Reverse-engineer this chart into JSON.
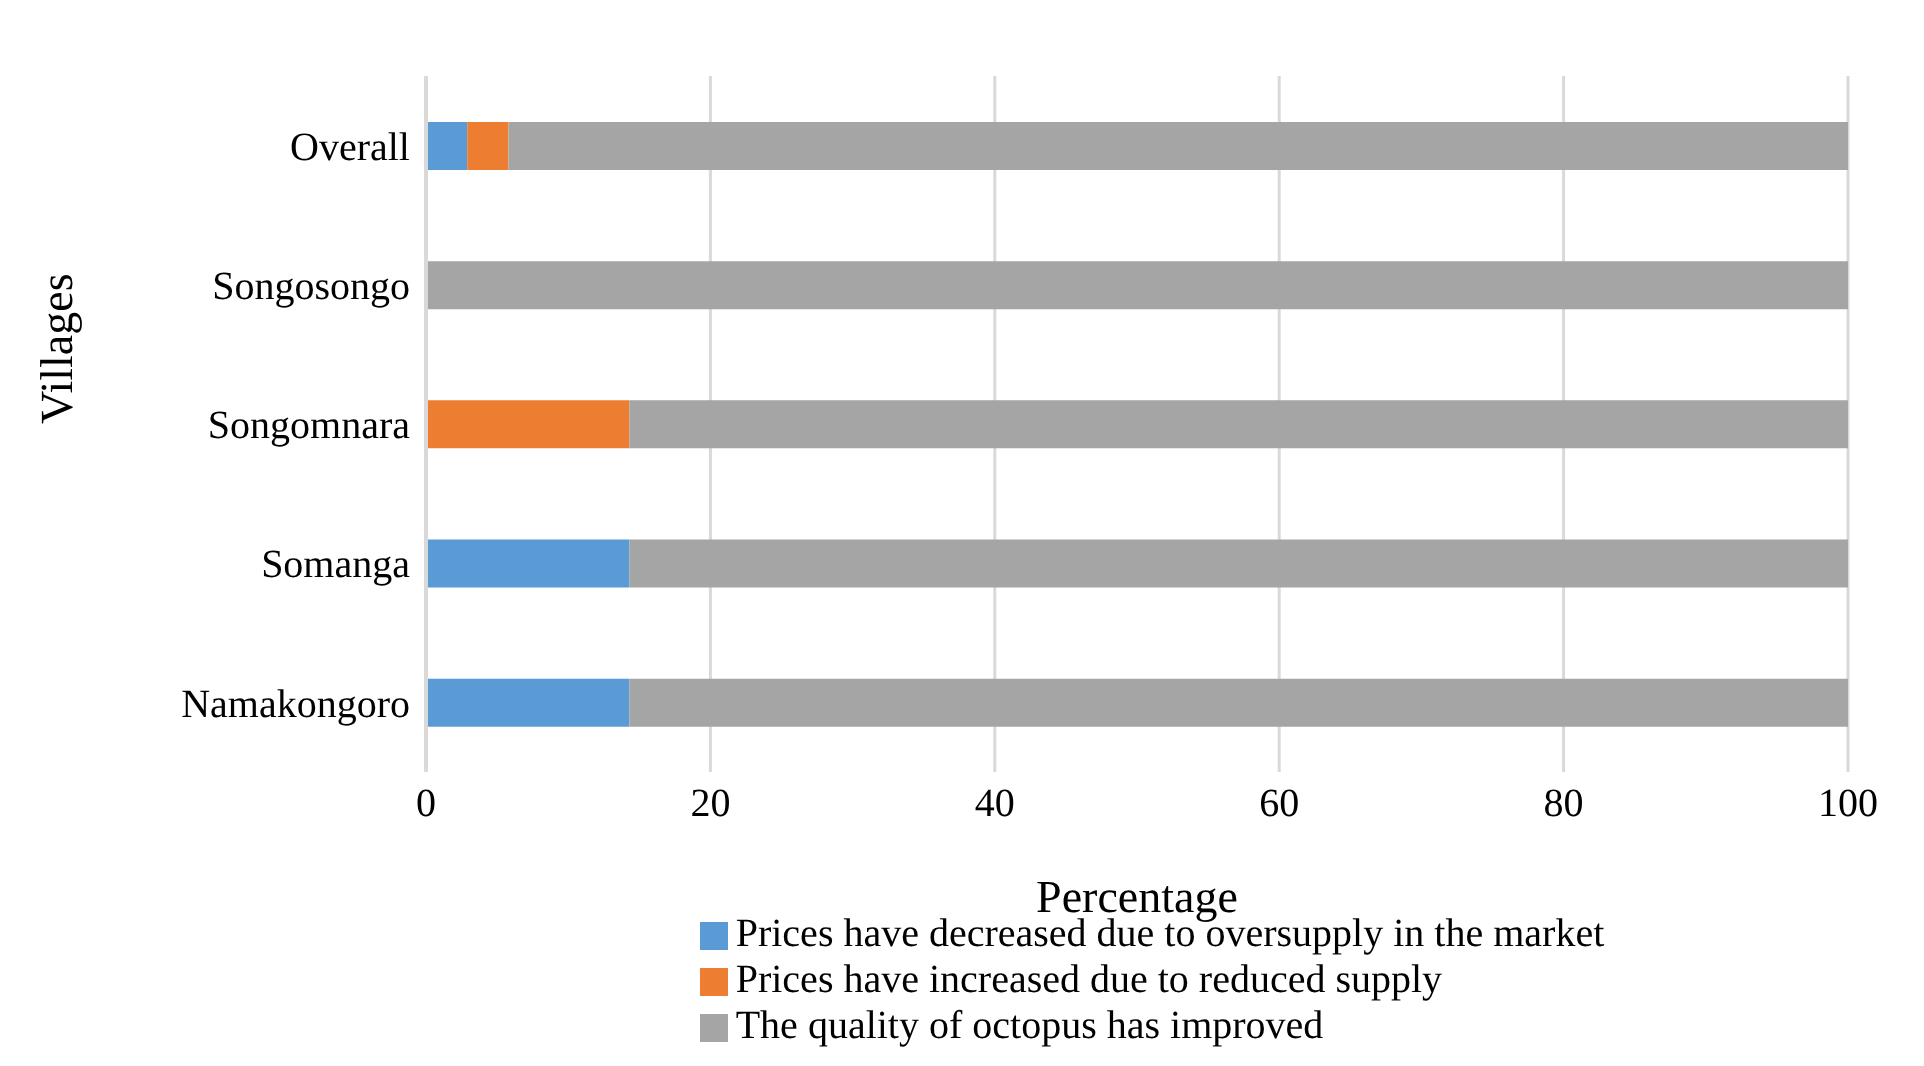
{
  "chart_data": {
    "type": "bar",
    "orientation": "horizontal",
    "stacked": true,
    "xlabel": "Percentage",
    "ylabel": "Villages",
    "categories": [
      "Overall",
      "Songosongo",
      "Songomnara",
      "Somanga",
      "Namakongoro"
    ],
    "series": [
      {
        "name": "Prices have decreased due to oversupply in the market",
        "color": "#5b9bd5",
        "values": [
          2.9,
          0,
          0,
          14.3,
          14.3
        ]
      },
      {
        "name": "Prices have increased due to reduced supply",
        "color": "#ed7d31",
        "values": [
          2.9,
          0,
          14.3,
          0,
          0
        ]
      },
      {
        "name": "The quality of octopus has improved",
        "color": "#a5a5a5",
        "values": [
          94.2,
          100,
          85.7,
          85.7,
          85.7
        ]
      }
    ],
    "xlim": [
      0,
      100
    ],
    "xticks": [
      0,
      20,
      40,
      60,
      80,
      100
    ],
    "grid": "x",
    "legend": "bottom"
  }
}
